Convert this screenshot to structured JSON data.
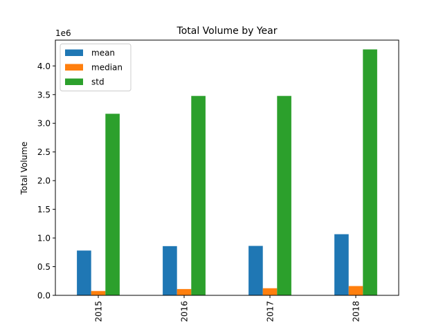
{
  "chart_data": {
    "type": "bar",
    "title": "Total Volume by Year",
    "xlabel": "",
    "ylabel": "Total Volume",
    "scale_label": "1e6",
    "categories": [
      "2015",
      "2016",
      "2017",
      "2018"
    ],
    "series": [
      {
        "name": "mean",
        "color": "#1f77b4",
        "values": [
          781000,
          858000,
          862000,
          1066000
        ]
      },
      {
        "name": "median",
        "color": "#ff7f0e",
        "values": [
          76000,
          110000,
          124000,
          162000
        ]
      },
      {
        "name": "std",
        "color": "#2ca02c",
        "values": [
          3166000,
          3477000,
          3477000,
          4288000
        ]
      }
    ],
    "ylim": [
      0,
      4450000
    ],
    "yticks": [
      0,
      500000,
      1000000,
      1500000,
      2000000,
      2500000,
      3000000,
      3500000,
      4000000
    ],
    "ytick_labels": [
      "0.0",
      "0.5",
      "1.0",
      "1.5",
      "2.0",
      "2.5",
      "3.0",
      "3.5",
      "4.0"
    ],
    "grid": false,
    "legend": "top-left"
  }
}
